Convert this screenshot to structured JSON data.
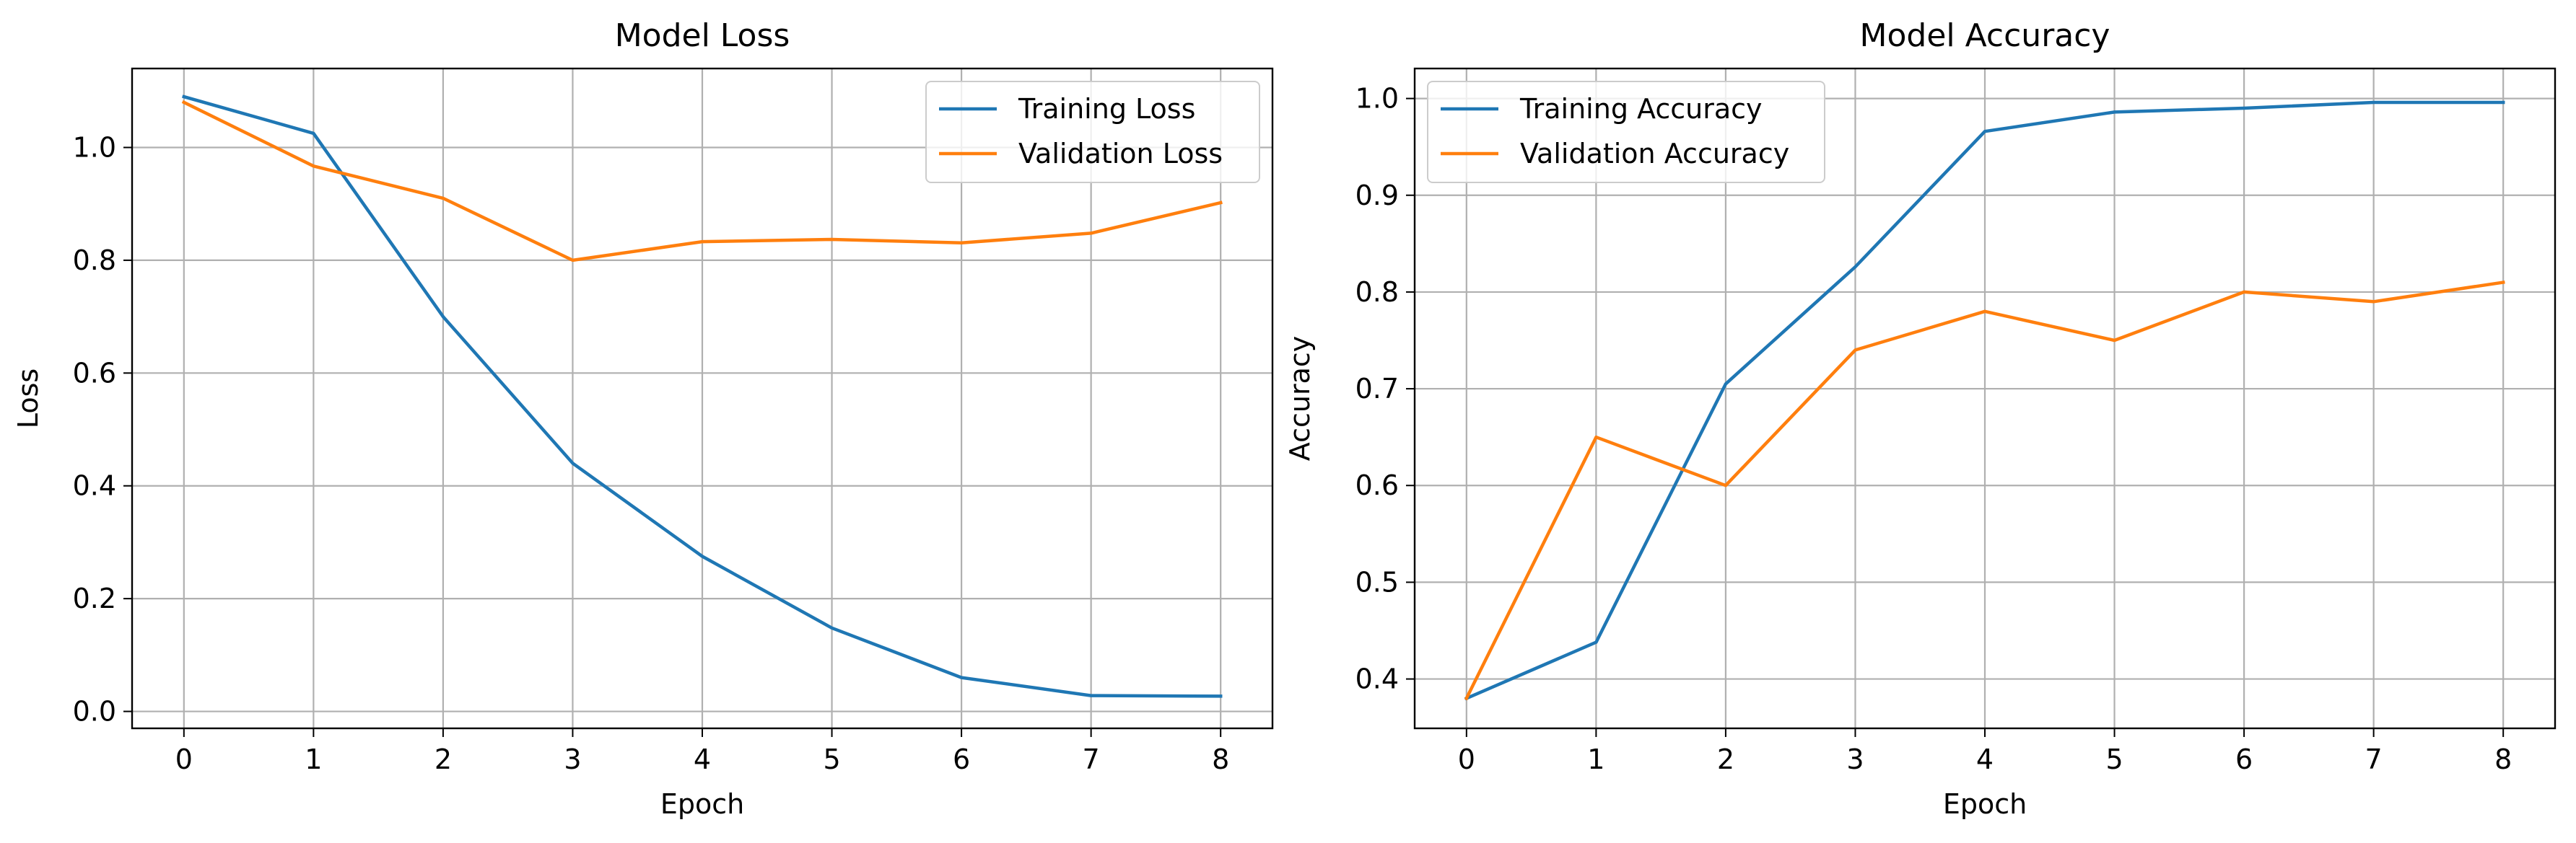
{
  "chart_data": [
    {
      "type": "line",
      "title": "Model Loss",
      "xlabel": "Epoch",
      "ylabel": "Loss",
      "xlim": [
        -0.4,
        8.4
      ],
      "ylim": [
        -0.03,
        1.14
      ],
      "xticks": [
        0,
        1,
        2,
        3,
        4,
        5,
        6,
        7,
        8
      ],
      "yticks": [
        0.0,
        0.2,
        0.4,
        0.6,
        0.8,
        1.0
      ],
      "ytick_labels": [
        "0.0",
        "0.2",
        "0.4",
        "0.6",
        "0.8",
        "1.0"
      ],
      "grid": true,
      "legend_position": "top-right",
      "x": [
        0,
        1,
        2,
        3,
        4,
        5,
        6,
        7,
        8
      ],
      "series": [
        {
          "name": "Training Loss",
          "color": "#1f77b4",
          "values": [
            1.09,
            1.025,
            0.7,
            0.44,
            0.275,
            0.148,
            0.06,
            0.028,
            0.027
          ]
        },
        {
          "name": "Validation Loss",
          "color": "#ff7f0e",
          "values": [
            1.08,
            0.967,
            0.91,
            0.8,
            0.833,
            0.837,
            0.831,
            0.848,
            0.902
          ]
        }
      ]
    },
    {
      "type": "line",
      "title": "Model Accuracy",
      "xlabel": "Epoch",
      "ylabel": "Accuracy",
      "xlim": [
        -0.4,
        8.4
      ],
      "ylim": [
        0.349,
        1.031
      ],
      "xticks": [
        0,
        1,
        2,
        3,
        4,
        5,
        6,
        7,
        8
      ],
      "yticks": [
        0.4,
        0.5,
        0.6,
        0.7,
        0.8,
        0.9,
        1.0
      ],
      "ytick_labels": [
        "0.4",
        "0.5",
        "0.6",
        "0.7",
        "0.8",
        "0.9",
        "1.0"
      ],
      "grid": true,
      "legend_position": "top-left",
      "x": [
        0,
        1,
        2,
        3,
        4,
        5,
        6,
        7,
        8
      ],
      "series": [
        {
          "name": "Training Accuracy",
          "color": "#1f77b4",
          "values": [
            0.38,
            0.438,
            0.705,
            0.826,
            0.966,
            0.986,
            0.99,
            0.996,
            0.996
          ]
        },
        {
          "name": "Validation Accuracy",
          "color": "#ff7f0e",
          "values": [
            0.38,
            0.65,
            0.6,
            0.74,
            0.78,
            0.75,
            0.8,
            0.79,
            0.81
          ]
        }
      ]
    }
  ]
}
